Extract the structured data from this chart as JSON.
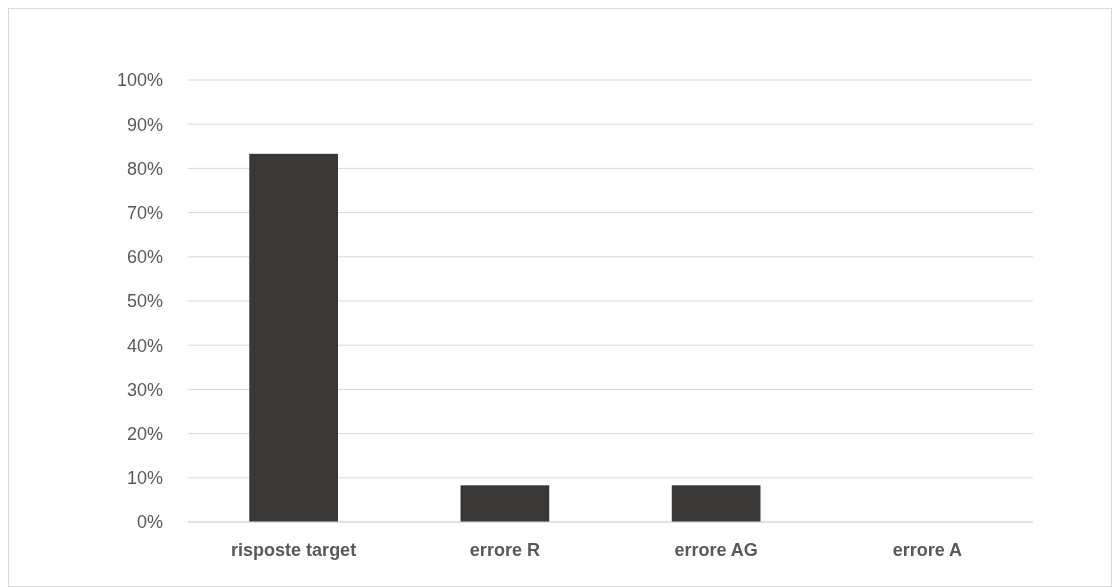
{
  "chart_data": {
    "type": "bar",
    "categories": [
      "risposte target",
      "errore R",
      "errore AG",
      "errore A"
    ],
    "values": [
      83.3,
      8.3,
      8.3,
      0
    ],
    "color": "#3a3836",
    "ylim": [
      0,
      100
    ],
    "yticks": [
      {
        "value": 0,
        "label": "0%"
      },
      {
        "value": 10,
        "label": "10%"
      },
      {
        "value": 20,
        "label": "20%"
      },
      {
        "value": 30,
        "label": "30%"
      },
      {
        "value": 40,
        "label": "40%"
      },
      {
        "value": 50,
        "label": "50%"
      },
      {
        "value": 60,
        "label": "60%"
      },
      {
        "value": 70,
        "label": "70%"
      },
      {
        "value": 80,
        "label": "80%"
      },
      {
        "value": 90,
        "label": "90%"
      },
      {
        "value": 100,
        "label": "100%"
      }
    ],
    "grid": "y"
  }
}
